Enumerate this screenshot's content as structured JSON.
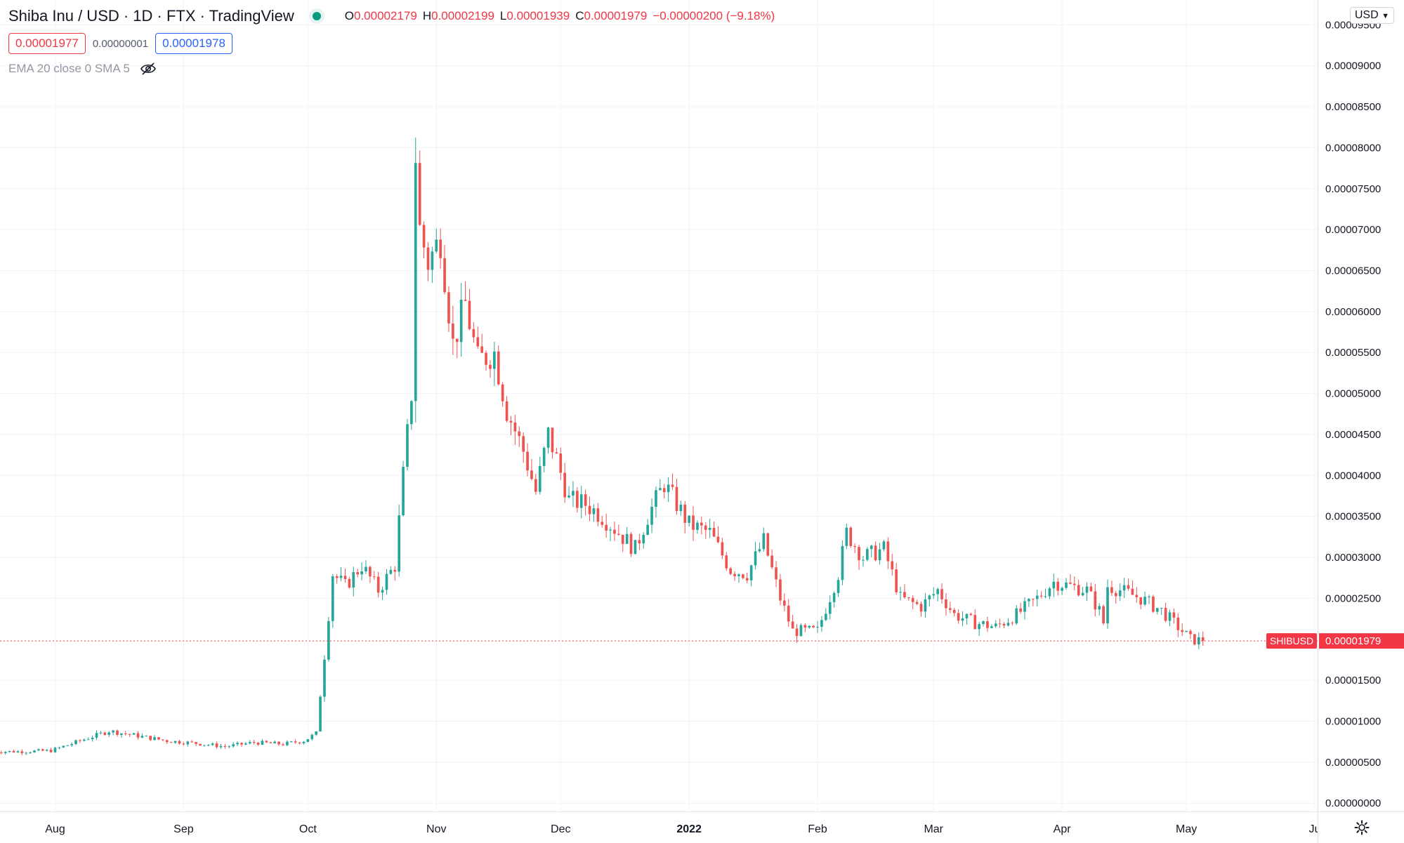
{
  "header": {
    "title": "Shiba Inu / USD · 1D · FTX · TradingView",
    "ohlc": {
      "open_label": "O",
      "open": "0.00002179",
      "high_label": "H",
      "high": "0.00002199",
      "low_label": "L",
      "low": "0.00001939",
      "close_label": "C",
      "close": "0.00001979",
      "change": "−0.00000200 (−9.18%)"
    },
    "sell_price": "0.00001977",
    "spread": "0.00000001",
    "buy_price": "0.00001978",
    "indicators": "EMA 20 close 0 SMA 5",
    "currency": "USD"
  },
  "colors": {
    "up": "#26a69a",
    "down": "#ef5350",
    "grid": "#f0f3fa",
    "last_price": "#f23645"
  },
  "icons": [
    "eye-off-icon",
    "chevron-down-icon",
    "gear-icon"
  ],
  "price_tag": {
    "symbol": "SHIBUSD",
    "price": "0.00001979",
    "value": 1.979e-05
  },
  "chart_data": {
    "type": "candlestick",
    "ylim": [
      -5e-07,
      9.7e-05
    ],
    "y_ticks": [
      {
        "value": 9.5e-05,
        "label": "0.00009500"
      },
      {
        "value": 9e-05,
        "label": "0.00009000"
      },
      {
        "value": 8.5e-05,
        "label": "0.00008500"
      },
      {
        "value": 8e-05,
        "label": "0.00008000"
      },
      {
        "value": 7.5e-05,
        "label": "0.00007500"
      },
      {
        "value": 7e-05,
        "label": "0.00007000"
      },
      {
        "value": 6.5e-05,
        "label": "0.00006500"
      },
      {
        "value": 6e-05,
        "label": "0.00006000"
      },
      {
        "value": 5.5e-05,
        "label": "0.00005500"
      },
      {
        "value": 5e-05,
        "label": "0.00005000"
      },
      {
        "value": 4.5e-05,
        "label": "0.00004500"
      },
      {
        "value": 4e-05,
        "label": "0.00004000"
      },
      {
        "value": 3.5e-05,
        "label": "0.00003500"
      },
      {
        "value": 3e-05,
        "label": "0.00003000"
      },
      {
        "value": 2.5e-05,
        "label": "0.00002500"
      },
      {
        "value": 1.5e-05,
        "label": "0.00001500"
      },
      {
        "value": 1e-05,
        "label": "0.00001000"
      },
      {
        "value": 5e-06,
        "label": "0.00000500"
      },
      {
        "value": 0.0,
        "label": "0.00000000"
      }
    ],
    "x_ticks": [
      {
        "date": "2021-08-01",
        "label": "Aug",
        "bold": false
      },
      {
        "date": "2021-09-01",
        "label": "Sep",
        "bold": false
      },
      {
        "date": "2021-10-01",
        "label": "Oct",
        "bold": false
      },
      {
        "date": "2021-11-01",
        "label": "Nov",
        "bold": false
      },
      {
        "date": "2021-12-01",
        "label": "Dec",
        "bold": false
      },
      {
        "date": "2022-01-01",
        "label": "2022",
        "bold": true
      },
      {
        "date": "2022-02-01",
        "label": "Feb",
        "bold": false
      },
      {
        "date": "2022-03-01",
        "label": "Mar",
        "bold": false
      },
      {
        "date": "2022-04-01",
        "label": "Apr",
        "bold": false
      },
      {
        "date": "2022-05-01",
        "label": "May",
        "bold": false
      },
      {
        "date": "2022-06-01",
        "label": "Ju",
        "bold": false
      }
    ],
    "x_range": [
      "2021-07-17",
      "2022-06-01"
    ],
    "close_series": [
      [
        "2021-07-17",
        6.3
      ],
      [
        "2021-07-24",
        6.3
      ],
      [
        "2021-07-31",
        6.4
      ],
      [
        "2021-08-07",
        7.6
      ],
      [
        "2021-08-14",
        8.8
      ],
      [
        "2021-08-21",
        8.2
      ],
      [
        "2021-08-28",
        7.6
      ],
      [
        "2021-09-04",
        7.3
      ],
      [
        "2021-09-11",
        6.9
      ],
      [
        "2021-09-18",
        7.4
      ],
      [
        "2021-09-25",
        7.2
      ],
      [
        "2021-09-30",
        7.6
      ],
      [
        "2021-10-03",
        8.5
      ],
      [
        "2021-10-05",
        18.0
      ],
      [
        "2021-10-07",
        28.0
      ],
      [
        "2021-10-10",
        26.5
      ],
      [
        "2021-10-14",
        29.0
      ],
      [
        "2021-10-18",
        26.0
      ],
      [
        "2021-10-22",
        29.0
      ],
      [
        "2021-10-24",
        40.0
      ],
      [
        "2021-10-26",
        50.0
      ],
      [
        "2021-10-27",
        79.0
      ],
      [
        "2021-10-28",
        70.0
      ],
      [
        "2021-10-30",
        66.0
      ],
      [
        "2021-11-02",
        69.0
      ],
      [
        "2021-11-05",
        56.0
      ],
      [
        "2021-11-08",
        61.0
      ],
      [
        "2021-11-11",
        54.0
      ],
      [
        "2021-11-15",
        55.0
      ],
      [
        "2021-11-18",
        48.0
      ],
      [
        "2021-11-22",
        43.0
      ],
      [
        "2021-11-25",
        38.0
      ],
      [
        "2021-11-28",
        45.0
      ],
      [
        "2021-11-30",
        42.0
      ],
      [
        "2021-12-03",
        37.0
      ],
      [
        "2021-12-07",
        36.5
      ],
      [
        "2021-12-11",
        35.0
      ],
      [
        "2021-12-15",
        33.0
      ],
      [
        "2021-12-19",
        31.0
      ],
      [
        "2021-12-22",
        35.0
      ],
      [
        "2021-12-26",
        39.0
      ],
      [
        "2022-01-01",
        34.0
      ],
      [
        "2022-01-06",
        33.0
      ],
      [
        "2022-01-11",
        28.5
      ],
      [
        "2022-01-15",
        28.0
      ],
      [
        "2022-01-19",
        32.0
      ],
      [
        "2022-01-23",
        25.0
      ],
      [
        "2022-01-26",
        21.0
      ],
      [
        "2022-02-01",
        21.0
      ],
      [
        "2022-02-06",
        28.0
      ],
      [
        "2022-02-08",
        33.0
      ],
      [
        "2022-02-12",
        30.0
      ],
      [
        "2022-02-17",
        31.0
      ],
      [
        "2022-02-21",
        25.0
      ],
      [
        "2022-02-26",
        24.0
      ],
      [
        "2022-03-02",
        26.0
      ],
      [
        "2022-03-06",
        23.0
      ],
      [
        "2022-03-11",
        22.0
      ],
      [
        "2022-03-16",
        21.5
      ],
      [
        "2022-03-21",
        23.0
      ],
      [
        "2022-03-26",
        25.0
      ],
      [
        "2022-03-30",
        27.0
      ],
      [
        "2022-04-03",
        26.5
      ],
      [
        "2022-04-07",
        26.0
      ],
      [
        "2022-04-10",
        23.5
      ],
      [
        "2022-04-11",
        22.0
      ],
      [
        "2022-04-12",
        26.5
      ],
      [
        "2022-04-15",
        26.0
      ],
      [
        "2022-04-20",
        25.0
      ],
      [
        "2022-04-25",
        23.5
      ],
      [
        "2022-04-29",
        21.5
      ],
      [
        "2022-05-02",
        20.0
      ],
      [
        "2022-05-05",
        19.79
      ]
    ],
    "series_scale": 1e-06
  }
}
